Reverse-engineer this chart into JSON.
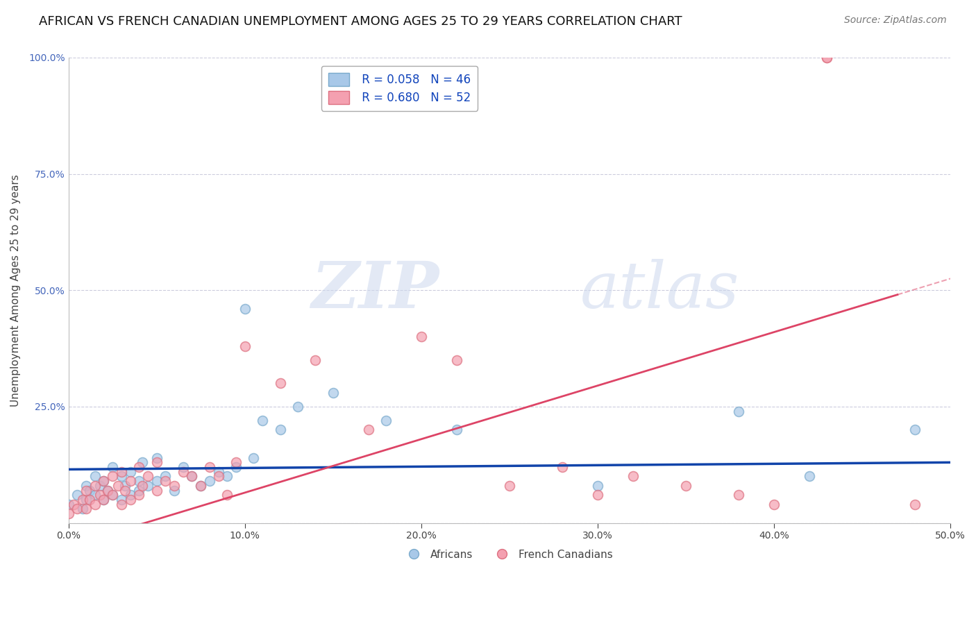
{
  "title": "AFRICAN VS FRENCH CANADIAN UNEMPLOYMENT AMONG AGES 25 TO 29 YEARS CORRELATION CHART",
  "source": "Source: ZipAtlas.com",
  "ylabel": "Unemployment Among Ages 25 to 29 years",
  "xlim": [
    0.0,
    0.5
  ],
  "ylim": [
    0.0,
    1.0
  ],
  "xticks": [
    0.0,
    0.1,
    0.2,
    0.3,
    0.4,
    0.5
  ],
  "yticks": [
    0.0,
    0.25,
    0.5,
    0.75,
    1.0
  ],
  "xticklabels": [
    "0.0%",
    "10.0%",
    "20.0%",
    "30.0%",
    "40.0%",
    "50.0%"
  ],
  "yticklabels": [
    "",
    "25.0%",
    "50.0%",
    "75.0%",
    "100.0%"
  ],
  "african_color": "#a8c8e8",
  "african_edge_color": "#7aaacc",
  "french_color": "#f4a0b0",
  "french_edge_color": "#dd7080",
  "african_R": 0.058,
  "african_N": 46,
  "french_R": 0.68,
  "french_N": 52,
  "legend_label_african": "Africans",
  "legend_label_french": "French Canadians",
  "african_scatter_x": [
    0.0,
    0.005,
    0.008,
    0.01,
    0.01,
    0.012,
    0.015,
    0.015,
    0.018,
    0.02,
    0.02,
    0.022,
    0.025,
    0.025,
    0.03,
    0.03,
    0.032,
    0.035,
    0.035,
    0.04,
    0.04,
    0.042,
    0.045,
    0.05,
    0.05,
    0.055,
    0.06,
    0.065,
    0.07,
    0.075,
    0.08,
    0.085,
    0.09,
    0.095,
    0.1,
    0.105,
    0.11,
    0.12,
    0.13,
    0.15,
    0.18,
    0.22,
    0.3,
    0.38,
    0.42,
    0.48
  ],
  "african_scatter_y": [
    0.04,
    0.06,
    0.03,
    0.08,
    0.05,
    0.07,
    0.06,
    0.1,
    0.08,
    0.05,
    0.09,
    0.07,
    0.06,
    0.12,
    0.05,
    0.1,
    0.08,
    0.06,
    0.11,
    0.07,
    0.09,
    0.13,
    0.08,
    0.09,
    0.14,
    0.1,
    0.07,
    0.12,
    0.1,
    0.08,
    0.09,
    0.11,
    0.1,
    0.12,
    0.46,
    0.14,
    0.22,
    0.2,
    0.25,
    0.28,
    0.22,
    0.2,
    0.08,
    0.24,
    0.1,
    0.2
  ],
  "french_scatter_x": [
    0.0,
    0.003,
    0.005,
    0.008,
    0.01,
    0.01,
    0.012,
    0.015,
    0.015,
    0.018,
    0.02,
    0.02,
    0.022,
    0.025,
    0.025,
    0.028,
    0.03,
    0.03,
    0.032,
    0.035,
    0.035,
    0.04,
    0.04,
    0.042,
    0.045,
    0.05,
    0.05,
    0.055,
    0.06,
    0.065,
    0.07,
    0.075,
    0.08,
    0.085,
    0.09,
    0.095,
    0.1,
    0.12,
    0.14,
    0.17,
    0.2,
    0.22,
    0.25,
    0.28,
    0.3,
    0.32,
    0.35,
    0.38,
    0.4,
    0.43,
    0.43,
    0.48
  ],
  "french_scatter_y": [
    0.02,
    0.04,
    0.03,
    0.05,
    0.03,
    0.07,
    0.05,
    0.04,
    0.08,
    0.06,
    0.05,
    0.09,
    0.07,
    0.06,
    0.1,
    0.08,
    0.04,
    0.11,
    0.07,
    0.05,
    0.09,
    0.06,
    0.12,
    0.08,
    0.1,
    0.07,
    0.13,
    0.09,
    0.08,
    0.11,
    0.1,
    0.08,
    0.12,
    0.1,
    0.06,
    0.13,
    0.38,
    0.3,
    0.35,
    0.2,
    0.4,
    0.35,
    0.08,
    0.12,
    0.06,
    0.1,
    0.08,
    0.06,
    0.04,
    1.0,
    1.0,
    0.04
  ],
  "watermark_zip": "ZIP",
  "watermark_atlas": "atlas",
  "background_color": "#ffffff",
  "grid_color": "#ccccdd",
  "title_fontsize": 13,
  "axis_label_fontsize": 11,
  "tick_fontsize": 10,
  "legend_fontsize": 12,
  "source_fontsize": 10,
  "african_line_color": "#1144aa",
  "french_line_color": "#dd4466",
  "african_line_intercept": 0.115,
  "african_line_slope": 0.03,
  "french_line_intercept": -0.05,
  "french_line_slope": 1.15
}
